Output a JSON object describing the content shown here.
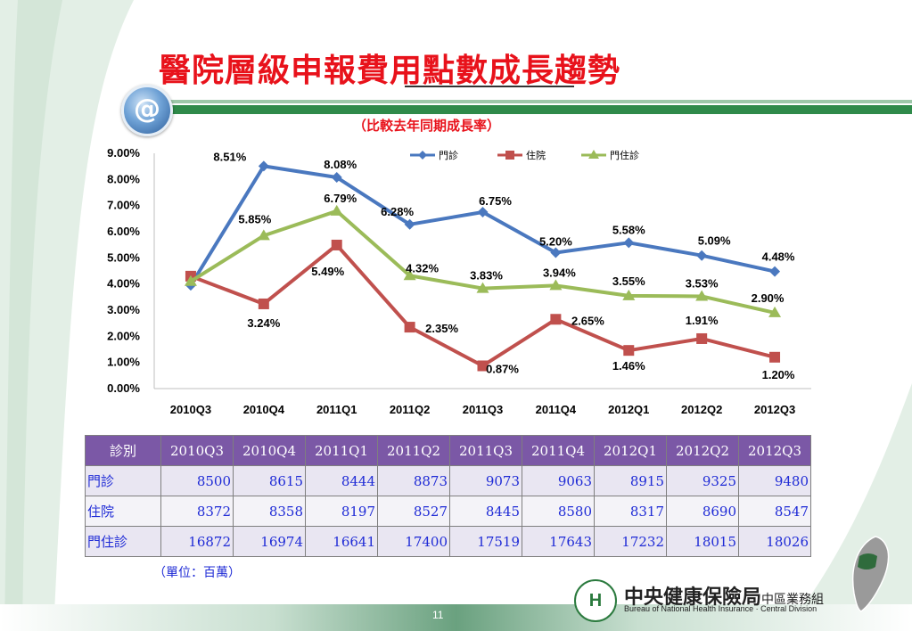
{
  "title": "醫院層級申報費用點數成長趨勢",
  "subtitle": "（比較去年同期成長率）",
  "badge_icon": "at-sign-icon",
  "colors": {
    "title": "#e8121b",
    "series_outpatient": "#4a78bf",
    "series_inpatient": "#c0504d",
    "series_total": "#9bbb59",
    "table_header": "#7b58a6",
    "table_text": "#1f2bd6"
  },
  "chart_data": {
    "type": "line",
    "categories": [
      "2010Q3",
      "2010Q4",
      "2011Q1",
      "2011Q2",
      "2011Q3",
      "2011Q4",
      "2012Q1",
      "2012Q2",
      "2012Q3"
    ],
    "ylim": [
      0,
      9
    ],
    "yticks": [
      "0.00%",
      "1.00%",
      "2.00%",
      "3.00%",
      "4.00%",
      "5.00%",
      "6.00%",
      "7.00%",
      "8.00%",
      "9.00%"
    ],
    "grid": false,
    "legend_position": "top-right",
    "series": [
      {
        "name": "門診",
        "marker": "diamond",
        "values": [
          3.95,
          8.51,
          8.08,
          6.28,
          6.75,
          5.2,
          5.58,
          5.09,
          4.48
        ],
        "labels": [
          "",
          "8.51%",
          "8.08%",
          "6.28%",
          "6.75%",
          "5.20%",
          "5.58%",
          "5.09%",
          "4.48%"
        ]
      },
      {
        "name": "住院",
        "marker": "square",
        "values": [
          4.3,
          3.24,
          5.49,
          2.35,
          0.87,
          2.65,
          1.46,
          1.91,
          1.2
        ],
        "labels": [
          "",
          "3.24%",
          "5.49%",
          "2.35%",
          "0.87%",
          "2.65%",
          "1.46%",
          "1.91%",
          "1.20%"
        ]
      },
      {
        "name": "門住診",
        "marker": "triangle",
        "values": [
          4.1,
          5.85,
          6.79,
          4.32,
          3.83,
          3.94,
          3.55,
          3.53,
          2.9
        ],
        "labels": [
          "",
          "5.85%",
          "6.79%",
          "4.32%",
          "3.83%",
          "3.94%",
          "3.55%",
          "3.53%",
          "2.90%"
        ]
      }
    ]
  },
  "table": {
    "corner": "診別",
    "headers": [
      "2010Q3",
      "2010Q4",
      "2011Q1",
      "2011Q2",
      "2011Q3",
      "2011Q4",
      "2012Q1",
      "2012Q2",
      "2012Q3"
    ],
    "rows": [
      {
        "label": "門診",
        "values": [
          "8500",
          "8615",
          "8444",
          "8873",
          "9073",
          "9063",
          "8915",
          "9325",
          "9480"
        ]
      },
      {
        "label": "住院",
        "values": [
          "8372",
          "8358",
          "8197",
          "8527",
          "8445",
          "8580",
          "8317",
          "8690",
          "8547"
        ]
      },
      {
        "label": "門住診",
        "values": [
          "16872",
          "16974",
          "16641",
          "17400",
          "17519",
          "17643",
          "17232",
          "18015",
          "18026"
        ]
      }
    ]
  },
  "unit_note": "（單位：百萬）",
  "footer": {
    "org_name": "中央健康保險局",
    "org_division": "中區業務組",
    "org_english": "Bureau of National Health Insurance · Central Division",
    "logo_letter": "H",
    "page_number": "11"
  }
}
